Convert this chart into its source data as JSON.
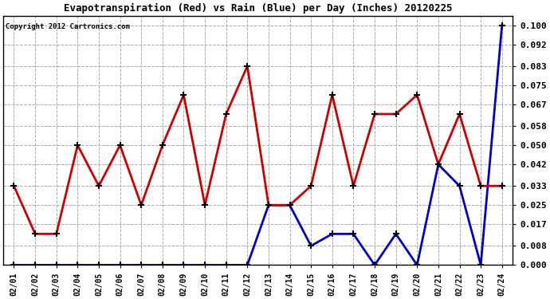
{
  "title": "Evapotranspiration (Red) vs Rain (Blue) per Day (Inches) 20120225",
  "copyright": "Copyright 2012 Cartronics.com",
  "dates": [
    "02/01",
    "02/02",
    "02/03",
    "02/04",
    "02/05",
    "02/06",
    "02/07",
    "02/08",
    "02/09",
    "02/10",
    "02/11",
    "02/12",
    "02/13",
    "02/14",
    "02/15",
    "02/16",
    "02/17",
    "02/18",
    "02/19",
    "02/20",
    "02/21",
    "02/22",
    "02/23",
    "02/24"
  ],
  "et_red": [
    0.033,
    0.013,
    0.013,
    0.05,
    0.033,
    0.05,
    0.025,
    0.05,
    0.071,
    0.025,
    0.063,
    0.083,
    0.025,
    0.025,
    0.033,
    0.071,
    0.033,
    0.063,
    0.063,
    0.071,
    0.042,
    0.063,
    0.033,
    0.033
  ],
  "rain_blue": [
    0.0,
    0.0,
    0.0,
    0.0,
    0.0,
    0.0,
    0.0,
    0.0,
    0.0,
    0.0,
    0.0,
    0.0,
    0.025,
    0.025,
    0.008,
    0.013,
    0.013,
    0.0,
    0.013,
    0.0,
    0.042,
    0.033,
    0.0,
    0.1
  ],
  "red_color": "#cc0000",
  "blue_color": "#0000cc",
  "bg_color": "#ffffff",
  "plot_bg_color": "#ffffff",
  "ylim": [
    0.0,
    0.104
  ],
  "yticks": [
    0.0,
    0.008,
    0.017,
    0.025,
    0.033,
    0.042,
    0.05,
    0.058,
    0.067,
    0.075,
    0.083,
    0.092,
    0.1
  ]
}
